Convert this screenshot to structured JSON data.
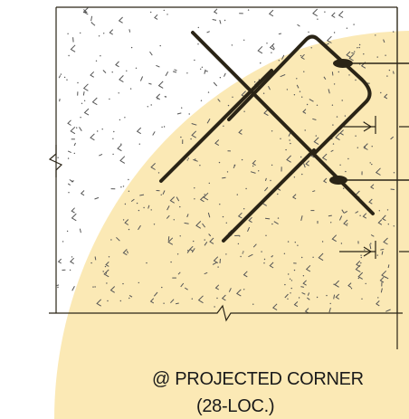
{
  "detail": {
    "title": "@ PROJECTED CORNER",
    "subtitle": "(28-LOC.)"
  },
  "colors": {
    "highlight": "#fbe9b5",
    "line": "#2a2416",
    "concrete_speckle": "#555555"
  }
}
